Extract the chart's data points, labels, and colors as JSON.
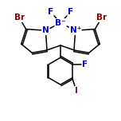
{
  "bg_color": "#ffffff",
  "bond_color": "#000000",
  "atom_colors": {
    "Br": "#8B0000",
    "B": "#0000CD",
    "N": "#0000CD",
    "F": "#0000CD",
    "I": "#800080",
    "C": "#000000"
  },
  "figsize": [
    1.52,
    1.52
  ],
  "dpi": 100
}
